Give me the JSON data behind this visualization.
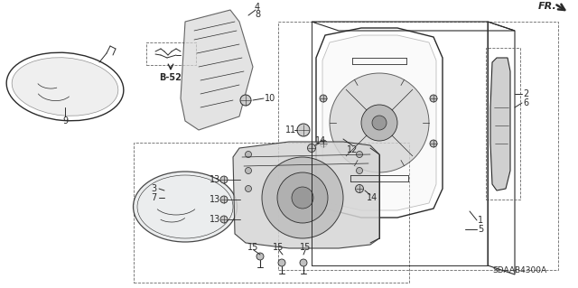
{
  "bg_color": "#ffffff",
  "line_color": "#2a2a2a",
  "diagram_code": "SDAAB4300A",
  "label_fontsize": 7.0,
  "small_fontsize": 6.5
}
